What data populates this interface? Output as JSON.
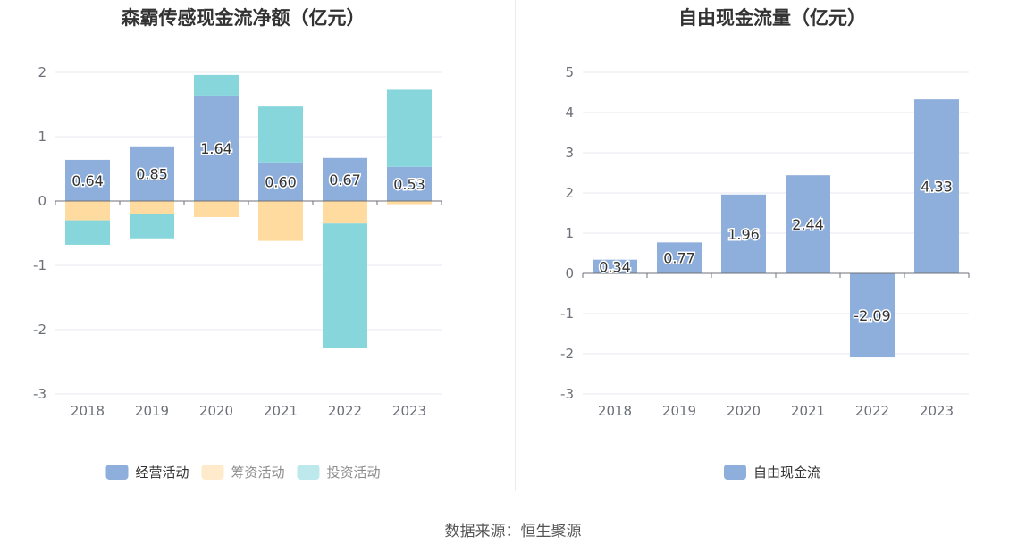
{
  "source": "数据来源：恒生聚源",
  "chart_data": [
    {
      "type": "bar",
      "stacked": true,
      "title": "森霸传感现金流净额（亿元）",
      "categories": [
        "2018",
        "2019",
        "2020",
        "2021",
        "2022",
        "2023"
      ],
      "series": [
        {
          "name": "经营活动",
          "color": "#8eaedb",
          "values": [
            0.64,
            0.85,
            1.64,
            0.6,
            0.67,
            0.53
          ],
          "labels": [
            "0.64",
            "0.85",
            "1.64",
            "0.60",
            "0.67",
            "0.53"
          ]
        },
        {
          "name": "筹资活动",
          "color": "#ffdba0",
          "values": [
            -0.3,
            -0.2,
            -0.25,
            -0.62,
            -0.35,
            -0.05
          ]
        },
        {
          "name": "投资活动",
          "color": "#87d6dc",
          "values": [
            -0.38,
            -0.38,
            0.32,
            0.87,
            -1.93,
            1.2
          ]
        }
      ],
      "ylim": [
        -3,
        2
      ],
      "yticks": [
        -3,
        -2,
        -1,
        0,
        1,
        2
      ],
      "grid": true,
      "legend": "bottom"
    },
    {
      "type": "bar",
      "title": "自由现金流量（亿元）",
      "categories": [
        "2018",
        "2019",
        "2020",
        "2021",
        "2022",
        "2023"
      ],
      "series": [
        {
          "name": "自由现金流",
          "color": "#8eaedb",
          "values": [
            0.34,
            0.77,
            1.96,
            2.44,
            -2.09,
            4.33
          ],
          "labels": [
            "0.34",
            "0.77",
            "1.96",
            "2.44",
            "-2.09",
            "4.33"
          ]
        }
      ],
      "ylim": [
        -3,
        5
      ],
      "yticks": [
        -3,
        -2,
        -1,
        0,
        1,
        2,
        3,
        4,
        5
      ],
      "grid": true,
      "legend": "bottom"
    }
  ]
}
